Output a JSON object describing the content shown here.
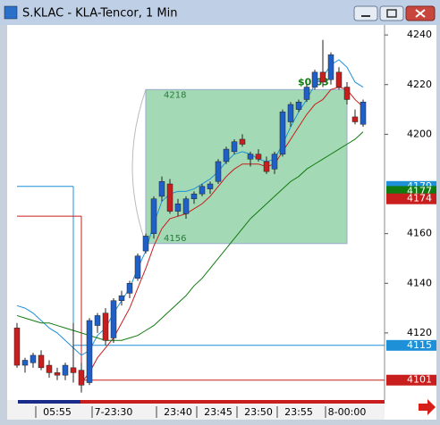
{
  "chart_data": {
    "type": "candlestick",
    "title": "S.KLAC - KLA-Tencor, 1 Min",
    "open": [
      4122,
      4107,
      4108,
      4111,
      4107,
      4104,
      4103,
      4106,
      4105,
      4100,
      4123,
      4128,
      4118,
      4133,
      4136,
      4142,
      4153,
      4160,
      4175,
      4180,
      4169,
      4168,
      4174,
      4176,
      4178,
      4181,
      4189,
      4193,
      4198,
      4190,
      4192,
      4189,
      4186,
      4192,
      4205,
      4210,
      4214,
      4219,
      4225,
      4222,
      4225,
      4219,
      4207,
      4204
    ],
    "high": [
      4124,
      4110,
      4112,
      4113,
      4109,
      4106,
      4108,
      4124,
      4108,
      4126,
      4128,
      4130,
      4134,
      4137,
      4141,
      4152,
      4160,
      4175,
      4183,
      4182,
      4174,
      4175,
      4177,
      4180,
      4181,
      4190,
      4195,
      4198,
      4200,
      4193,
      4194,
      4191,
      4193,
      4210,
      4213,
      4214,
      4220,
      4226,
      4238,
      4233,
      4227,
      4221,
      4210,
      4214
    ],
    "low": [
      4106,
      4104,
      4106,
      4105,
      4102,
      4101,
      4101,
      4100,
      4096,
      4099,
      4120,
      4115,
      4116,
      4131,
      4134,
      4141,
      4152,
      4158,
      4173,
      4168,
      4167,
      4166,
      4172,
      4175,
      4176,
      4180,
      4188,
      4192,
      4195,
      4187,
      4189,
      4184,
      4184,
      4191,
      4203,
      4209,
      4213,
      4218,
      4219,
      4220,
      4218,
      4212,
      4204,
      4203
    ],
    "close": [
      4107,
      4109,
      4111,
      4106,
      4104,
      4103,
      4107,
      4104,
      4099,
      4125,
      4127,
      4117,
      4133,
      4135,
      4140,
      4151,
      4159,
      4174,
      4181,
      4169,
      4172,
      4174,
      4176,
      4179,
      4180,
      4189,
      4194,
      4197,
      4196,
      4192,
      4190,
      4185,
      4192,
      4209,
      4212,
      4213,
      4219,
      4225,
      4221,
      4232,
      4219,
      4214,
      4205,
      4213
    ],
    "series": [
      {
        "color": "#1e90d8",
        "values": [
          4131,
          4130,
          4128,
          4125,
          4122,
          4120,
          4117,
          4114,
          4111,
          4113,
          4119,
          4122,
          4128,
          4133,
          4138,
          4146,
          4153,
          4164,
          4173,
          4176,
          4177,
          4177,
          4178,
          4180,
          4182,
          4185,
          4189,
          4192,
          4193,
          4192,
          4190,
          4189,
          4190,
          4196,
          4203,
          4209,
          4214,
          4220,
          4223,
          4228,
          4230,
          4227,
          4221,
          4219
        ]
      },
      {
        "color": "#c81e1e",
        "values": [
          null,
          null,
          null,
          null,
          null,
          null,
          null,
          null,
          4100,
          4104,
          4110,
          4114,
          4118,
          4124,
          4130,
          4138,
          4146,
          4155,
          4162,
          4166,
          4167,
          4168,
          4170,
          4172,
          4175,
          4179,
          4183,
          4186,
          4188,
          4188,
          4188,
          4187,
          4188,
          4193,
          4198,
          4203,
          4208,
          4212,
          4214,
          4218,
          4219,
          4218,
          4214,
          4211
        ]
      },
      {
        "color": "#117a11",
        "values": [
          4127,
          4126,
          4125,
          4124,
          4124,
          4123,
          4122,
          4121,
          4120,
          4119,
          4118,
          4117,
          4117,
          4117,
          4118,
          4119,
          4121,
          4123,
          4126,
          4129,
          4132,
          4135,
          4139,
          4142,
          4146,
          4150,
          4154,
          4158,
          4162,
          4166,
          4169,
          4172,
          4175,
          4178,
          4181,
          4183,
          4186,
          4188,
          4190,
          4192,
          4194,
          4196,
          4198,
          4201
        ]
      }
    ],
    "up_color": "#1f5fc8",
    "down_color": "#c81e1e",
    "levels": [
      {
        "from": 4179,
        "value": 4115,
        "break": 7,
        "color": "#1e90d8"
      },
      {
        "from": 4167,
        "value": 4101,
        "break": 8,
        "color": "#c81e1e"
      }
    ],
    "box": {
      "start": 16,
      "end": 41,
      "top": 4218,
      "bottom": 4156,
      "label": "$0.63"
    },
    "price_labels": [
      {
        "value": 4179,
        "color": "#1e90d8"
      },
      {
        "value": 4177,
        "color": "#117a11"
      },
      {
        "value": 4174,
        "color": "#c81e1e"
      },
      {
        "value": 4115,
        "color": "#1e90d8"
      },
      {
        "value": 4101,
        "color": "#c81e1e"
      }
    ],
    "ylim": [
      4093,
      4244
    ],
    "yticks": [
      4120,
      4140,
      4160,
      4200,
      4220,
      4240
    ],
    "xticks": [
      {
        "value": 5,
        "label": "05:55"
      },
      {
        "value": 12,
        "label": "7-23:30"
      },
      {
        "value": 20,
        "label": "23:40"
      },
      {
        "value": 25,
        "label": "23:45"
      },
      {
        "value": 30,
        "label": "23:50"
      },
      {
        "value": 35,
        "label": "23:55"
      },
      {
        "value": 41,
        "label": "8-00:00"
      }
    ]
  }
}
